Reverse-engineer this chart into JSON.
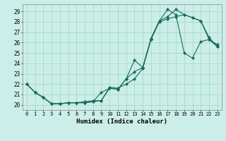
{
  "xlabel": "Humidex (Indice chaleur)",
  "background_color": "#cceee8",
  "grid_color": "#aaddcc",
  "line_color": "#1a6b5a",
  "xlim": [
    -0.5,
    23.5
  ],
  "ylim": [
    19.5,
    29.7
  ],
  "xticks": [
    0,
    1,
    2,
    3,
    4,
    5,
    6,
    7,
    8,
    9,
    10,
    11,
    12,
    13,
    14,
    15,
    16,
    17,
    18,
    19,
    20,
    21,
    22,
    23
  ],
  "yticks": [
    20,
    21,
    22,
    23,
    24,
    25,
    26,
    27,
    28,
    29
  ],
  "line1_x": [
    0,
    1,
    2,
    3,
    4,
    5,
    6,
    7,
    8,
    9,
    10,
    11,
    12,
    13,
    14,
    15,
    16,
    17,
    18,
    19,
    20,
    21,
    22,
    23
  ],
  "line1_y": [
    22.0,
    21.2,
    20.7,
    20.1,
    20.1,
    20.2,
    20.2,
    20.3,
    20.4,
    20.4,
    21.7,
    21.6,
    22.0,
    22.5,
    23.5,
    26.3,
    28.0,
    28.3,
    28.5,
    28.7,
    28.4,
    28.1,
    26.3,
    25.6
  ],
  "line2_x": [
    0,
    1,
    2,
    3,
    4,
    5,
    6,
    7,
    8,
    9,
    10,
    11,
    12,
    13,
    14,
    15,
    16,
    17,
    18,
    19,
    20,
    21,
    22,
    23
  ],
  "line2_y": [
    22.0,
    21.2,
    20.7,
    20.1,
    20.1,
    20.2,
    20.2,
    20.2,
    20.3,
    20.4,
    21.6,
    21.5,
    22.5,
    23.2,
    23.6,
    26.4,
    28.1,
    28.5,
    29.2,
    28.7,
    28.4,
    28.1,
    26.5,
    25.6
  ],
  "line3_x": [
    0,
    1,
    2,
    3,
    4,
    5,
    6,
    7,
    8,
    9,
    10,
    11,
    12,
    13,
    14,
    15,
    16,
    17,
    18,
    19,
    20,
    21,
    22,
    23
  ],
  "line3_y": [
    22.0,
    21.2,
    20.7,
    20.1,
    20.1,
    20.2,
    20.2,
    20.2,
    20.3,
    21.2,
    21.6,
    21.5,
    22.5,
    24.3,
    23.6,
    26.4,
    28.1,
    29.2,
    28.7,
    25.0,
    24.5,
    26.1,
    26.3,
    25.8
  ]
}
